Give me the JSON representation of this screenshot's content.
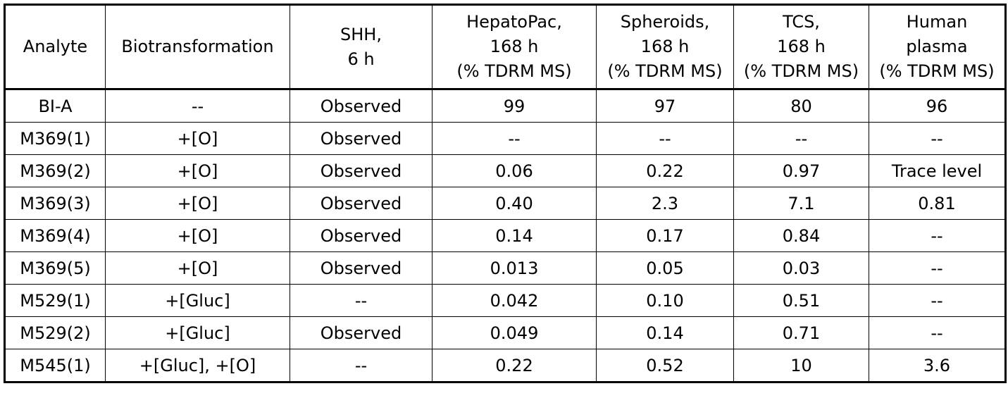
{
  "table": {
    "header": [
      [
        "Analyte"
      ],
      [
        "Biotransformation"
      ],
      [
        "SHH,",
        "6 h"
      ],
      [
        "HepatoPac,",
        "168 h",
        "(% TDRM MS)"
      ],
      [
        "Spheroids,",
        "168 h",
        "(% TDRM MS)"
      ],
      [
        "TCS,",
        "168 h",
        "(% TDRM MS)"
      ],
      [
        "Human",
        "plasma",
        "(% TDRM MS)"
      ]
    ],
    "rows": [
      [
        "BI-A",
        "--",
        "Observed",
        "99",
        "97",
        "80",
        "96"
      ],
      [
        "M369(1)",
        "+[O]",
        "Observed",
        "--",
        "--",
        "--",
        "--"
      ],
      [
        "M369(2)",
        "+[O]",
        "Observed",
        "0.06",
        "0.22",
        "0.97",
        "Trace level"
      ],
      [
        "M369(3)",
        "+[O]",
        "Observed",
        "0.40",
        "2.3",
        "7.1",
        "0.81"
      ],
      [
        "M369(4)",
        "+[O]",
        "Observed",
        "0.14",
        "0.17",
        "0.84",
        "--"
      ],
      [
        "M369(5)",
        "+[O]",
        "Observed",
        "0.013",
        "0.05",
        "0.03",
        "--"
      ],
      [
        "M529(1)",
        "+[Gluc]",
        "--",
        "0.042",
        "0.10",
        "0.51",
        "--"
      ],
      [
        "M529(2)",
        "+[Gluc]",
        "Observed",
        "0.049",
        "0.14",
        "0.71",
        "--"
      ],
      [
        "M545(1)",
        "+[Gluc], +[O]",
        "--",
        "0.22",
        "0.52",
        "10",
        "3.6"
      ]
    ]
  }
}
